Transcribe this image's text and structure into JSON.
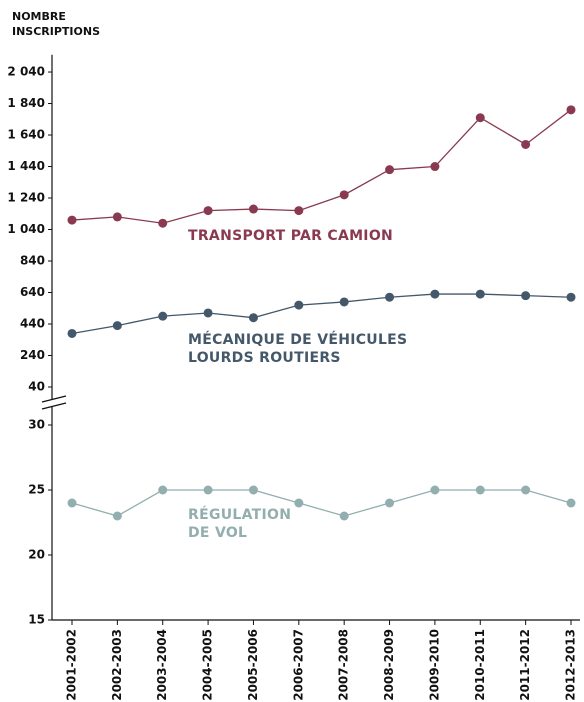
{
  "chart_data": {
    "type": "line",
    "y_axis_label": "NOMBRE INSCRIPTIONS",
    "categories": [
      "2001-2002",
      "2002-2003",
      "2003-2004",
      "2004-2005",
      "2005-2006",
      "2006-2007",
      "2007-2008",
      "2008-2009",
      "2009-2010",
      "2010-2011",
      "2011-2012",
      "2012-2013"
    ],
    "series": [
      {
        "name": "TRANSPORT PAR CAMION",
        "color": "#8a3a50",
        "values": [
          1100,
          1120,
          1080,
          1160,
          1170,
          1160,
          1260,
          1420,
          1440,
          1750,
          1580,
          1800
        ]
      },
      {
        "name": "MÉCANIQUE DE VÉHICULES LOURDS ROUTIERS",
        "color": "#44586a",
        "values": [
          380,
          430,
          490,
          510,
          480,
          560,
          580,
          610,
          630,
          630,
          620,
          610
        ]
      },
      {
        "name": "RÉGULATION DE VOL",
        "color": "#93aeae",
        "axis": "y2",
        "values": [
          24,
          23,
          25,
          25,
          25,
          24,
          23,
          24,
          25,
          25,
          25,
          24
        ]
      }
    ],
    "ylim": [
      0,
      2150
    ],
    "yticks": [
      {
        "value": 2040,
        "label": "2 040"
      },
      {
        "value": 1840,
        "label": "1 840"
      },
      {
        "value": 1640,
        "label": "1 640"
      },
      {
        "value": 1440,
        "label": "1 440"
      },
      {
        "value": 1240,
        "label": "1 240"
      },
      {
        "value": 1040,
        "label": "1 040"
      },
      840,
      640,
      440,
      240,
      40
    ],
    "y2lim": [
      15,
      31
    ],
    "y2ticks": [
      30,
      25,
      20,
      15
    ]
  }
}
